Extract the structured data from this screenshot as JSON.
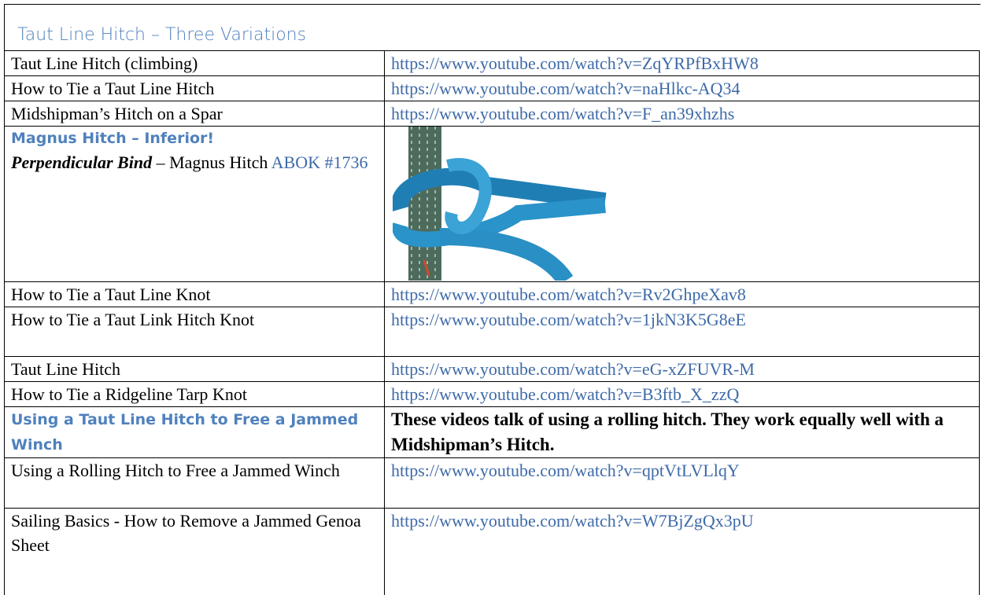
{
  "title": "Taut Line Hitch – Three Variations",
  "table": {
    "rows": [
      {
        "name": "Taut Line Hitch (climbing)",
        "link": "https://www.youtube.com/watch?v=ZqYRPfBxHW8"
      },
      {
        "name": "How to Tie a Taut Line Hitch",
        "link": "https://www.youtube.com/watch?v=naHlkc-AQ34"
      },
      {
        "name": "Midshipman’s Hitch on a Spar",
        "link": "https://www.youtube.com/watch?v=F_an39xhzhs"
      },
      {
        "heading": "Magnus Hitch – Inferior!",
        "term": "Perpendicular Bind",
        "text": "– Magnus Hitch",
        "ref": "ABOK #1736"
      },
      {
        "name": "How to Tie a Taut Line Knot",
        "link": "https://www.youtube.com/watch?v=Rv2GhpeXav8"
      },
      {
        "name": "How to Tie a Taut Link Hitch Knot",
        "link": "https://www.youtube.com/watch?v=1jkN3K5G8eE"
      },
      {
        "name": "Taut Line Hitch",
        "link": "https://www.youtube.com/watch?v=eG-xZFUVR-M"
      },
      {
        "name": "How to Tie a Ridgeline Tarp Knot",
        "link": "https://www.youtube.com/watch?v=B3ftb_X_zzQ"
      },
      {
        "heading": "Using a Taut Line Hitch to Free a Jammed Winch",
        "note": "These videos talk of using a rolling hitch. They work equally well with a Midshipman’s Hitch."
      },
      {
        "name": "Using a Rolling Hitch to Free a Jammed Winch",
        "link": "https://www.youtube.com/watch?v=qptVtLVLlqY"
      },
      {
        "name": "Sailing Basics - How to Remove a Jammed Genoa Sheet",
        "link": "https://www.youtube.com/watch?v=W7BjZgQx3pU"
      }
    ]
  }
}
